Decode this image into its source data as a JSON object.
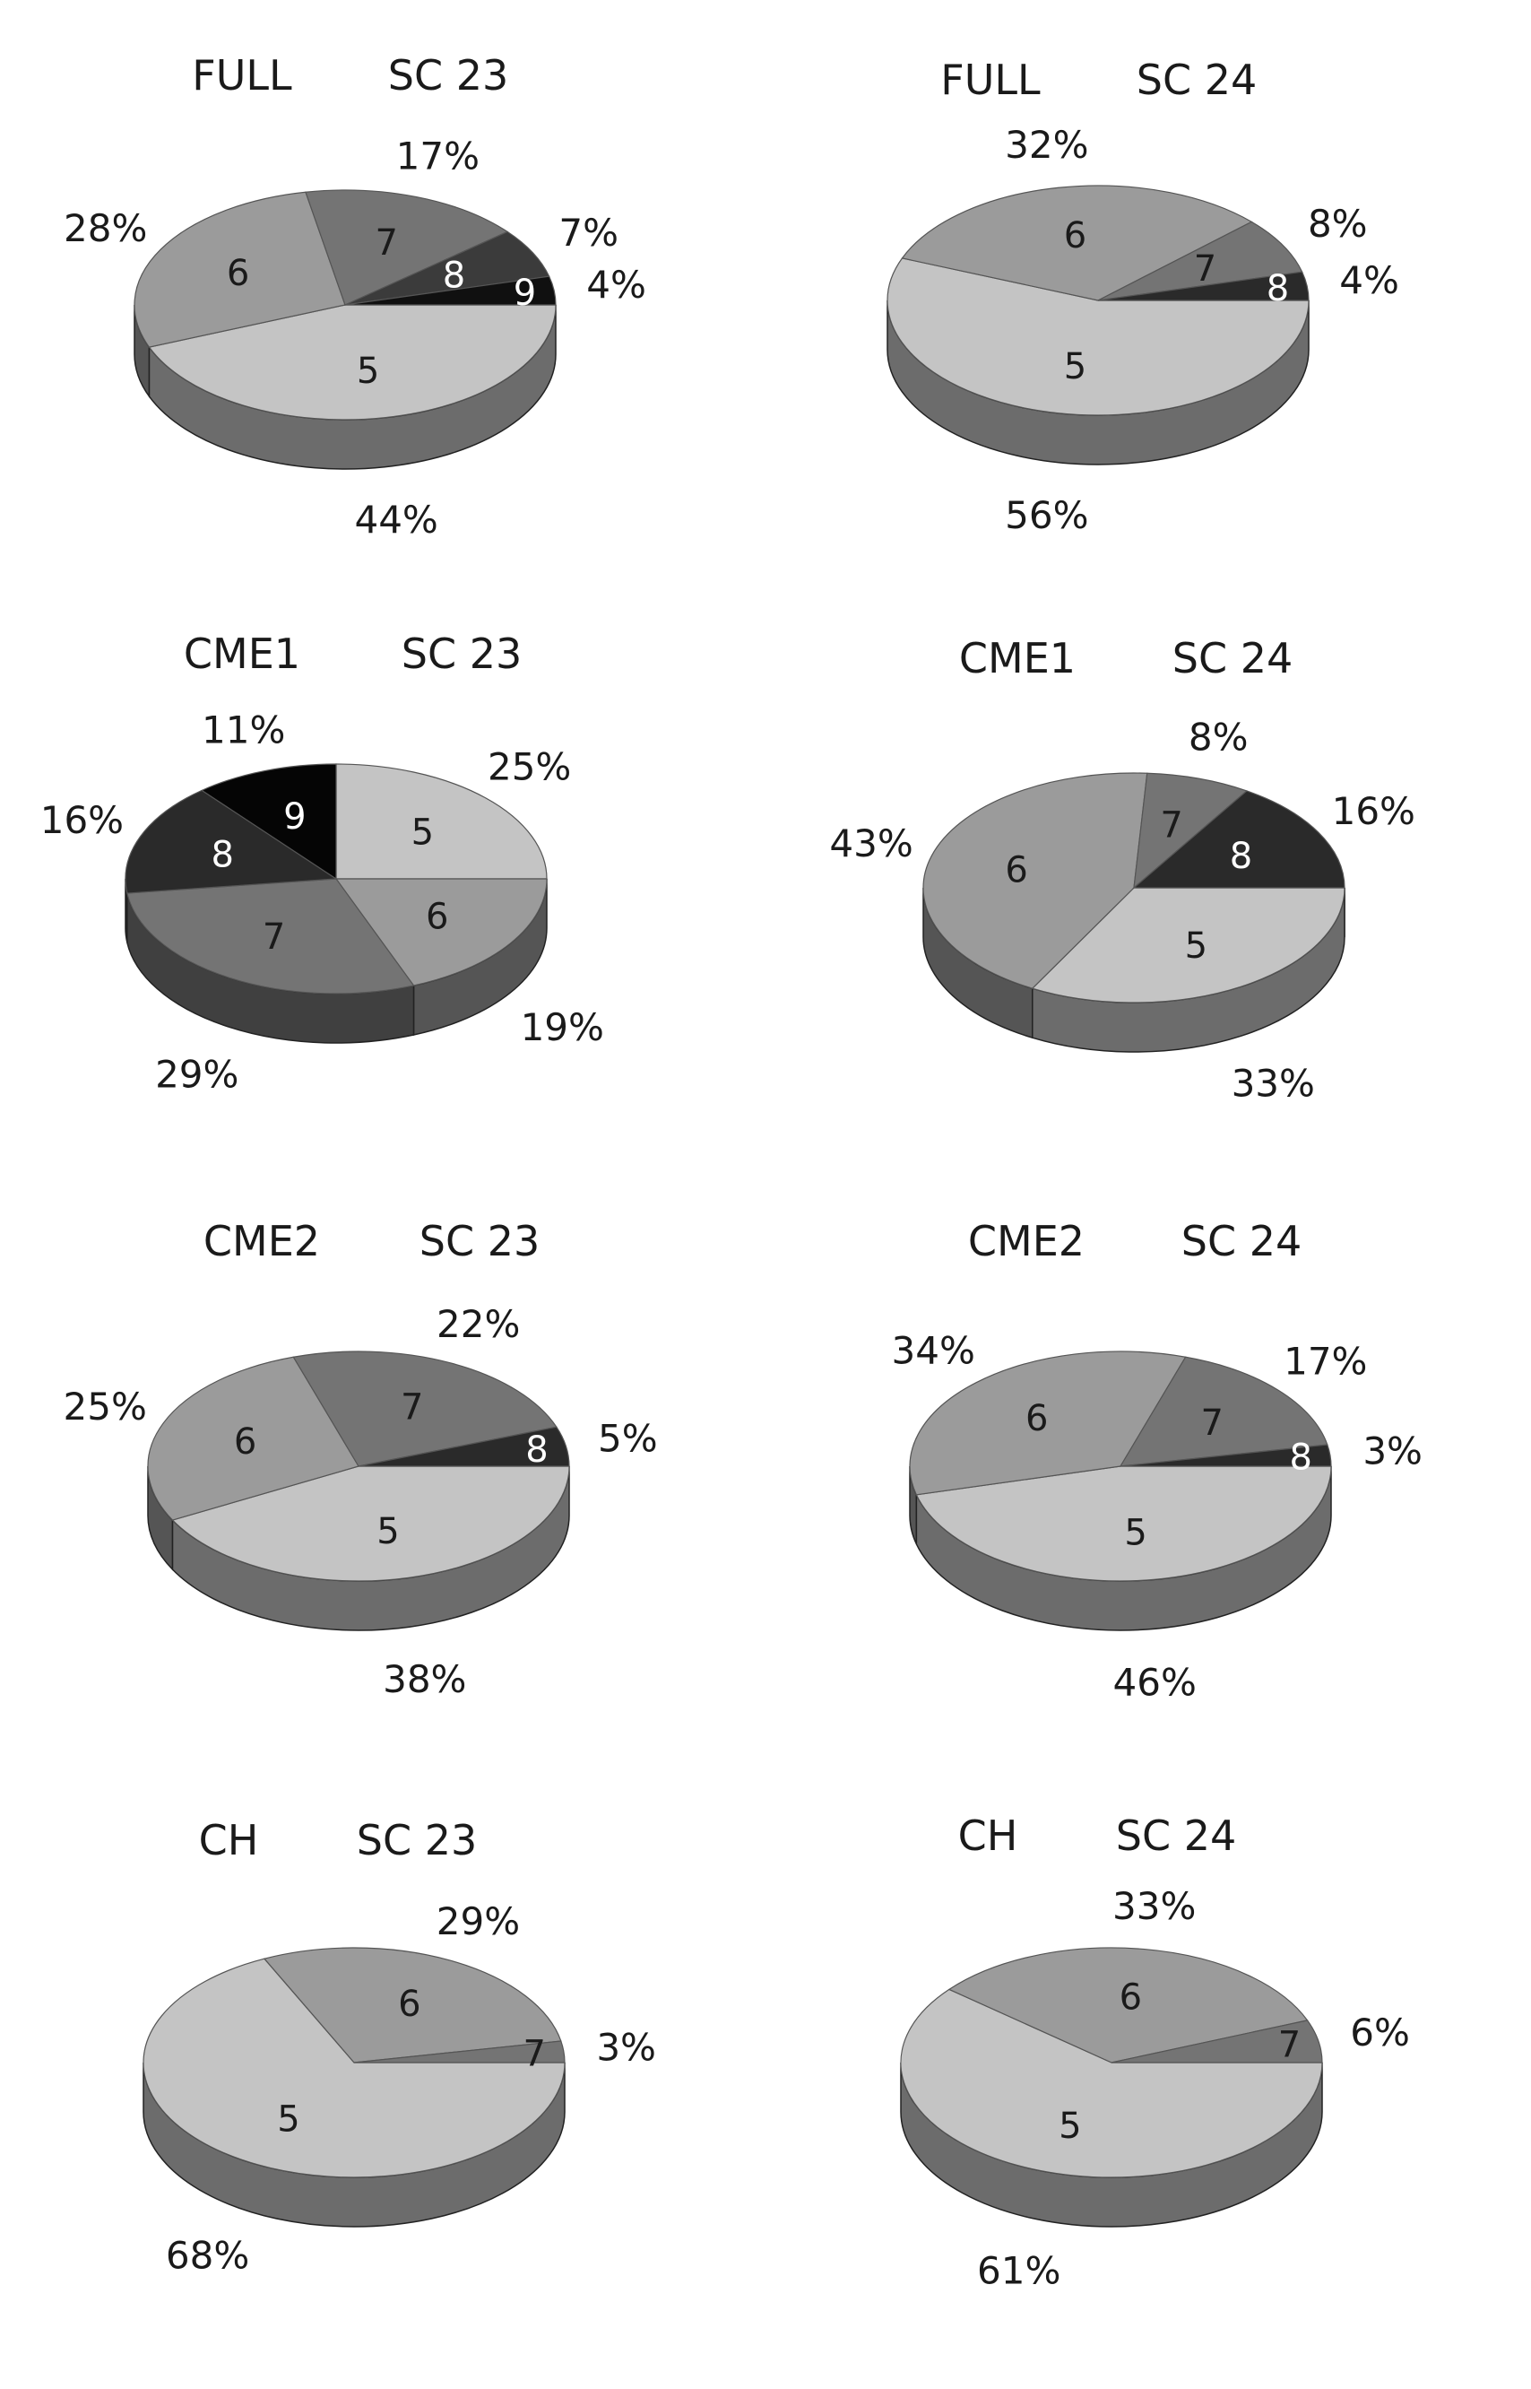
{
  "chart_data": [
    {
      "type": "pie",
      "title": "FULL",
      "subtitle": "SC 23",
      "categories": [
        "5",
        "6",
        "7",
        "8",
        "9"
      ],
      "values": [
        44,
        28,
        17,
        7,
        4
      ],
      "labels": [
        "44%",
        "28%",
        "17%",
        "7%",
        "4%"
      ],
      "colors": [
        "#c4c4c4",
        "#9b9b9b",
        "#747474",
        "#3b3b3b",
        "#101010"
      ]
    },
    {
      "type": "pie",
      "title": "FULL",
      "subtitle": "SC 24",
      "categories": [
        "5",
        "6",
        "7",
        "8"
      ],
      "values": [
        56,
        32,
        8,
        4
      ],
      "labels": [
        "56%",
        "32%",
        "8%",
        "4%"
      ],
      "colors": [
        "#c4c4c4",
        "#9b9b9b",
        "#747474",
        "#2a2a2a"
      ]
    },
    {
      "type": "pie",
      "title": "CME1",
      "subtitle": "SC 23",
      "categories": [
        "5",
        "6",
        "7",
        "8",
        "9"
      ],
      "values": [
        25,
        19,
        29,
        16,
        11
      ],
      "labels": [
        "25%",
        "19%",
        "29%",
        "16%",
        "11%"
      ],
      "colors": [
        "#c4c4c4",
        "#9b9b9b",
        "#747474",
        "#2a2a2a",
        "#050505"
      ]
    },
    {
      "type": "pie",
      "title": "CME1",
      "subtitle": "SC 24",
      "categories": [
        "5",
        "6",
        "7",
        "8"
      ],
      "values": [
        33,
        43,
        8,
        16
      ],
      "labels": [
        "33%",
        "43%",
        "8%",
        "16%"
      ],
      "colors": [
        "#c4c4c4",
        "#9b9b9b",
        "#747474",
        "#2a2a2a"
      ]
    },
    {
      "type": "pie",
      "title": "CME2",
      "subtitle": "SC 23",
      "categories": [
        "5",
        "6",
        "7",
        "8"
      ],
      "values": [
        38,
        25,
        22,
        5
      ],
      "labels": [
        "38%",
        "25%",
        "22%",
        "5%"
      ],
      "colors": [
        "#c4c4c4",
        "#9b9b9b",
        "#747474",
        "#2a2a2a"
      ]
    },
    {
      "type": "pie",
      "title": "CME2",
      "subtitle": "SC 24",
      "categories": [
        "5",
        "6",
        "7",
        "8"
      ],
      "values": [
        46,
        34,
        17,
        3
      ],
      "labels": [
        "46%",
        "34%",
        "17%",
        "3%"
      ],
      "colors": [
        "#c4c4c4",
        "#9b9b9b",
        "#747474",
        "#2a2a2a"
      ]
    },
    {
      "type": "pie",
      "title": "CH",
      "subtitle": "SC 23",
      "categories": [
        "5",
        "6",
        "7"
      ],
      "values": [
        68,
        29,
        3
      ],
      "labels": [
        "68%",
        "29%",
        "3%"
      ],
      "colors": [
        "#c4c4c4",
        "#9b9b9b",
        "#747474"
      ]
    },
    {
      "type": "pie",
      "title": "CH",
      "subtitle": "SC 24",
      "categories": [
        "5",
        "6",
        "7"
      ],
      "values": [
        61,
        33,
        6
      ],
      "labels": [
        "61%",
        "33%",
        "6%"
      ],
      "colors": [
        "#c4c4c4",
        "#9b9b9b",
        "#747474"
      ]
    }
  ]
}
